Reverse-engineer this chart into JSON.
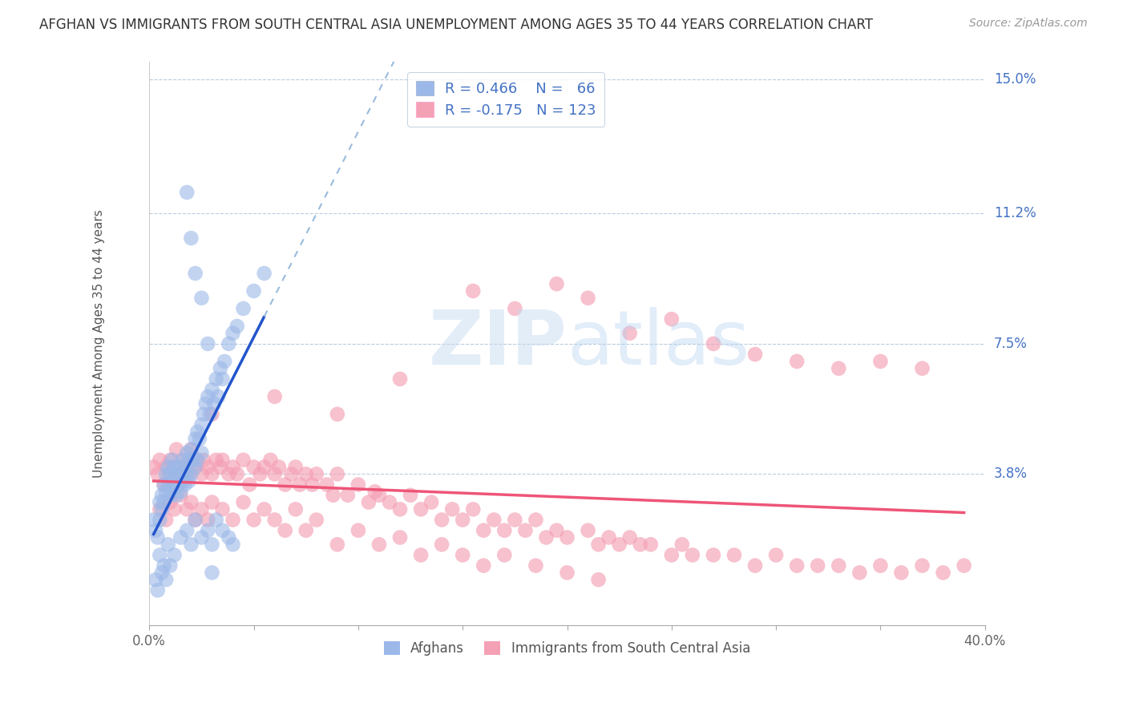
{
  "title": "AFGHAN VS IMMIGRANTS FROM SOUTH CENTRAL ASIA UNEMPLOYMENT AMONG AGES 35 TO 44 YEARS CORRELATION CHART",
  "source": "Source: ZipAtlas.com",
  "ylabel": "Unemployment Among Ages 35 to 44 years",
  "xlim": [
    0.0,
    0.4
  ],
  "ylim": [
    -0.005,
    0.155
  ],
  "ytick_right_labels": [
    "15.0%",
    "11.2%",
    "7.5%",
    "3.8%"
  ],
  "ytick_right_values": [
    0.15,
    0.112,
    0.075,
    0.038
  ],
  "legend_r1": "R = 0.466",
  "legend_n1": "N =  66",
  "legend_r2": "R = -0.175",
  "legend_n2": "N = 123",
  "blue_scatter_color": "#9BB8E8",
  "pink_scatter_color": "#F4A0B5",
  "blue_line_color": "#2255CC",
  "pink_line_color": "#EE5577",
  "blue_dash_color": "#99BBDD",
  "background_color": "#FFFFFF",
  "grid_color": "#BBCCE0",
  "watermark_color": "#C8DCF0",
  "afghans_x": [
    0.002,
    0.003,
    0.004,
    0.005,
    0.005,
    0.006,
    0.006,
    0.007,
    0.007,
    0.008,
    0.008,
    0.009,
    0.009,
    0.01,
    0.01,
    0.011,
    0.011,
    0.012,
    0.012,
    0.013,
    0.013,
    0.014,
    0.014,
    0.015,
    0.015,
    0.016,
    0.016,
    0.017,
    0.017,
    0.018,
    0.018,
    0.019,
    0.019,
    0.02,
    0.02,
    0.021,
    0.022,
    0.022,
    0.023,
    0.023,
    0.024,
    0.025,
    0.025,
    0.026,
    0.027,
    0.028,
    0.029,
    0.03,
    0.031,
    0.032,
    0.033,
    0.034,
    0.035,
    0.036,
    0.038,
    0.04,
    0.042,
    0.045,
    0.05,
    0.055,
    0.018,
    0.02,
    0.022,
    0.025,
    0.028,
    0.03
  ],
  "afghans_y": [
    0.025,
    0.022,
    0.02,
    0.03,
    0.025,
    0.032,
    0.028,
    0.035,
    0.03,
    0.038,
    0.033,
    0.04,
    0.035,
    0.038,
    0.032,
    0.042,
    0.036,
    0.04,
    0.034,
    0.038,
    0.032,
    0.04,
    0.035,
    0.038,
    0.033,
    0.042,
    0.036,
    0.04,
    0.035,
    0.044,
    0.038,
    0.042,
    0.036,
    0.045,
    0.038,
    0.042,
    0.048,
    0.04,
    0.05,
    0.042,
    0.048,
    0.052,
    0.044,
    0.055,
    0.058,
    0.06,
    0.055,
    0.062,
    0.058,
    0.065,
    0.06,
    0.068,
    0.065,
    0.07,
    0.075,
    0.078,
    0.08,
    0.085,
    0.09,
    0.095,
    0.118,
    0.105,
    0.095,
    0.088,
    0.075,
    0.01
  ],
  "afghans_x_low": [
    0.003,
    0.004,
    0.005,
    0.006,
    0.007,
    0.008,
    0.009,
    0.01,
    0.012,
    0.015,
    0.018,
    0.02,
    0.022,
    0.025,
    0.028,
    0.03,
    0.032,
    0.035,
    0.038,
    0.04
  ],
  "afghans_y_low": [
    0.008,
    0.005,
    0.015,
    0.01,
    0.012,
    0.008,
    0.018,
    0.012,
    0.015,
    0.02,
    0.022,
    0.018,
    0.025,
    0.02,
    0.022,
    0.018,
    0.025,
    0.022,
    0.02,
    0.018
  ],
  "immigrants_x": [
    0.002,
    0.004,
    0.005,
    0.007,
    0.008,
    0.01,
    0.01,
    0.012,
    0.013,
    0.015,
    0.016,
    0.018,
    0.019,
    0.02,
    0.022,
    0.023,
    0.025,
    0.026,
    0.028,
    0.03,
    0.032,
    0.034,
    0.035,
    0.038,
    0.04,
    0.042,
    0.045,
    0.048,
    0.05,
    0.053,
    0.055,
    0.058,
    0.06,
    0.062,
    0.065,
    0.068,
    0.07,
    0.072,
    0.075,
    0.078,
    0.08,
    0.085,
    0.088,
    0.09,
    0.095,
    0.1,
    0.105,
    0.108,
    0.11,
    0.115,
    0.12,
    0.125,
    0.13,
    0.135,
    0.14,
    0.145,
    0.15,
    0.155,
    0.16,
    0.165,
    0.17,
    0.175,
    0.18,
    0.185,
    0.19,
    0.195,
    0.2,
    0.21,
    0.215,
    0.22,
    0.225,
    0.23,
    0.235,
    0.24,
    0.25,
    0.255,
    0.26,
    0.27,
    0.28,
    0.29,
    0.3,
    0.31,
    0.32,
    0.33,
    0.34,
    0.35,
    0.36,
    0.37,
    0.38,
    0.39,
    0.005,
    0.008,
    0.01,
    0.012,
    0.015,
    0.018,
    0.02,
    0.022,
    0.025,
    0.028,
    0.03,
    0.035,
    0.04,
    0.045,
    0.05,
    0.055,
    0.06,
    0.065,
    0.07,
    0.075,
    0.08,
    0.09,
    0.1,
    0.11,
    0.12,
    0.13,
    0.14,
    0.15,
    0.16,
    0.17,
    0.185,
    0.2,
    0.215
  ],
  "immigrants_y": [
    0.04,
    0.038,
    0.042,
    0.035,
    0.04,
    0.038,
    0.042,
    0.04,
    0.045,
    0.038,
    0.042,
    0.04,
    0.038,
    0.045,
    0.04,
    0.042,
    0.038,
    0.042,
    0.04,
    0.038,
    0.042,
    0.04,
    0.042,
    0.038,
    0.04,
    0.038,
    0.042,
    0.035,
    0.04,
    0.038,
    0.04,
    0.042,
    0.038,
    0.04,
    0.035,
    0.038,
    0.04,
    0.035,
    0.038,
    0.035,
    0.038,
    0.035,
    0.032,
    0.038,
    0.032,
    0.035,
    0.03,
    0.033,
    0.032,
    0.03,
    0.028,
    0.032,
    0.028,
    0.03,
    0.025,
    0.028,
    0.025,
    0.028,
    0.022,
    0.025,
    0.022,
    0.025,
    0.022,
    0.025,
    0.02,
    0.022,
    0.02,
    0.022,
    0.018,
    0.02,
    0.018,
    0.02,
    0.018,
    0.018,
    0.015,
    0.018,
    0.015,
    0.015,
    0.015,
    0.012,
    0.015,
    0.012,
    0.012,
    0.012,
    0.01,
    0.012,
    0.01,
    0.012,
    0.01,
    0.012,
    0.028,
    0.025,
    0.03,
    0.028,
    0.032,
    0.028,
    0.03,
    0.025,
    0.028,
    0.025,
    0.03,
    0.028,
    0.025,
    0.03,
    0.025,
    0.028,
    0.025,
    0.022,
    0.028,
    0.022,
    0.025,
    0.018,
    0.022,
    0.018,
    0.02,
    0.015,
    0.018,
    0.015,
    0.012,
    0.015,
    0.012,
    0.01,
    0.008
  ],
  "immigrants_high_x": [
    0.155,
    0.175,
    0.195,
    0.21,
    0.23,
    0.25,
    0.27,
    0.29,
    0.31,
    0.33,
    0.35,
    0.37,
    0.03,
    0.06,
    0.09,
    0.12
  ],
  "immigrants_high_y": [
    0.09,
    0.085,
    0.092,
    0.088,
    0.078,
    0.082,
    0.075,
    0.072,
    0.07,
    0.068,
    0.07,
    0.068,
    0.055,
    0.06,
    0.055,
    0.065
  ]
}
